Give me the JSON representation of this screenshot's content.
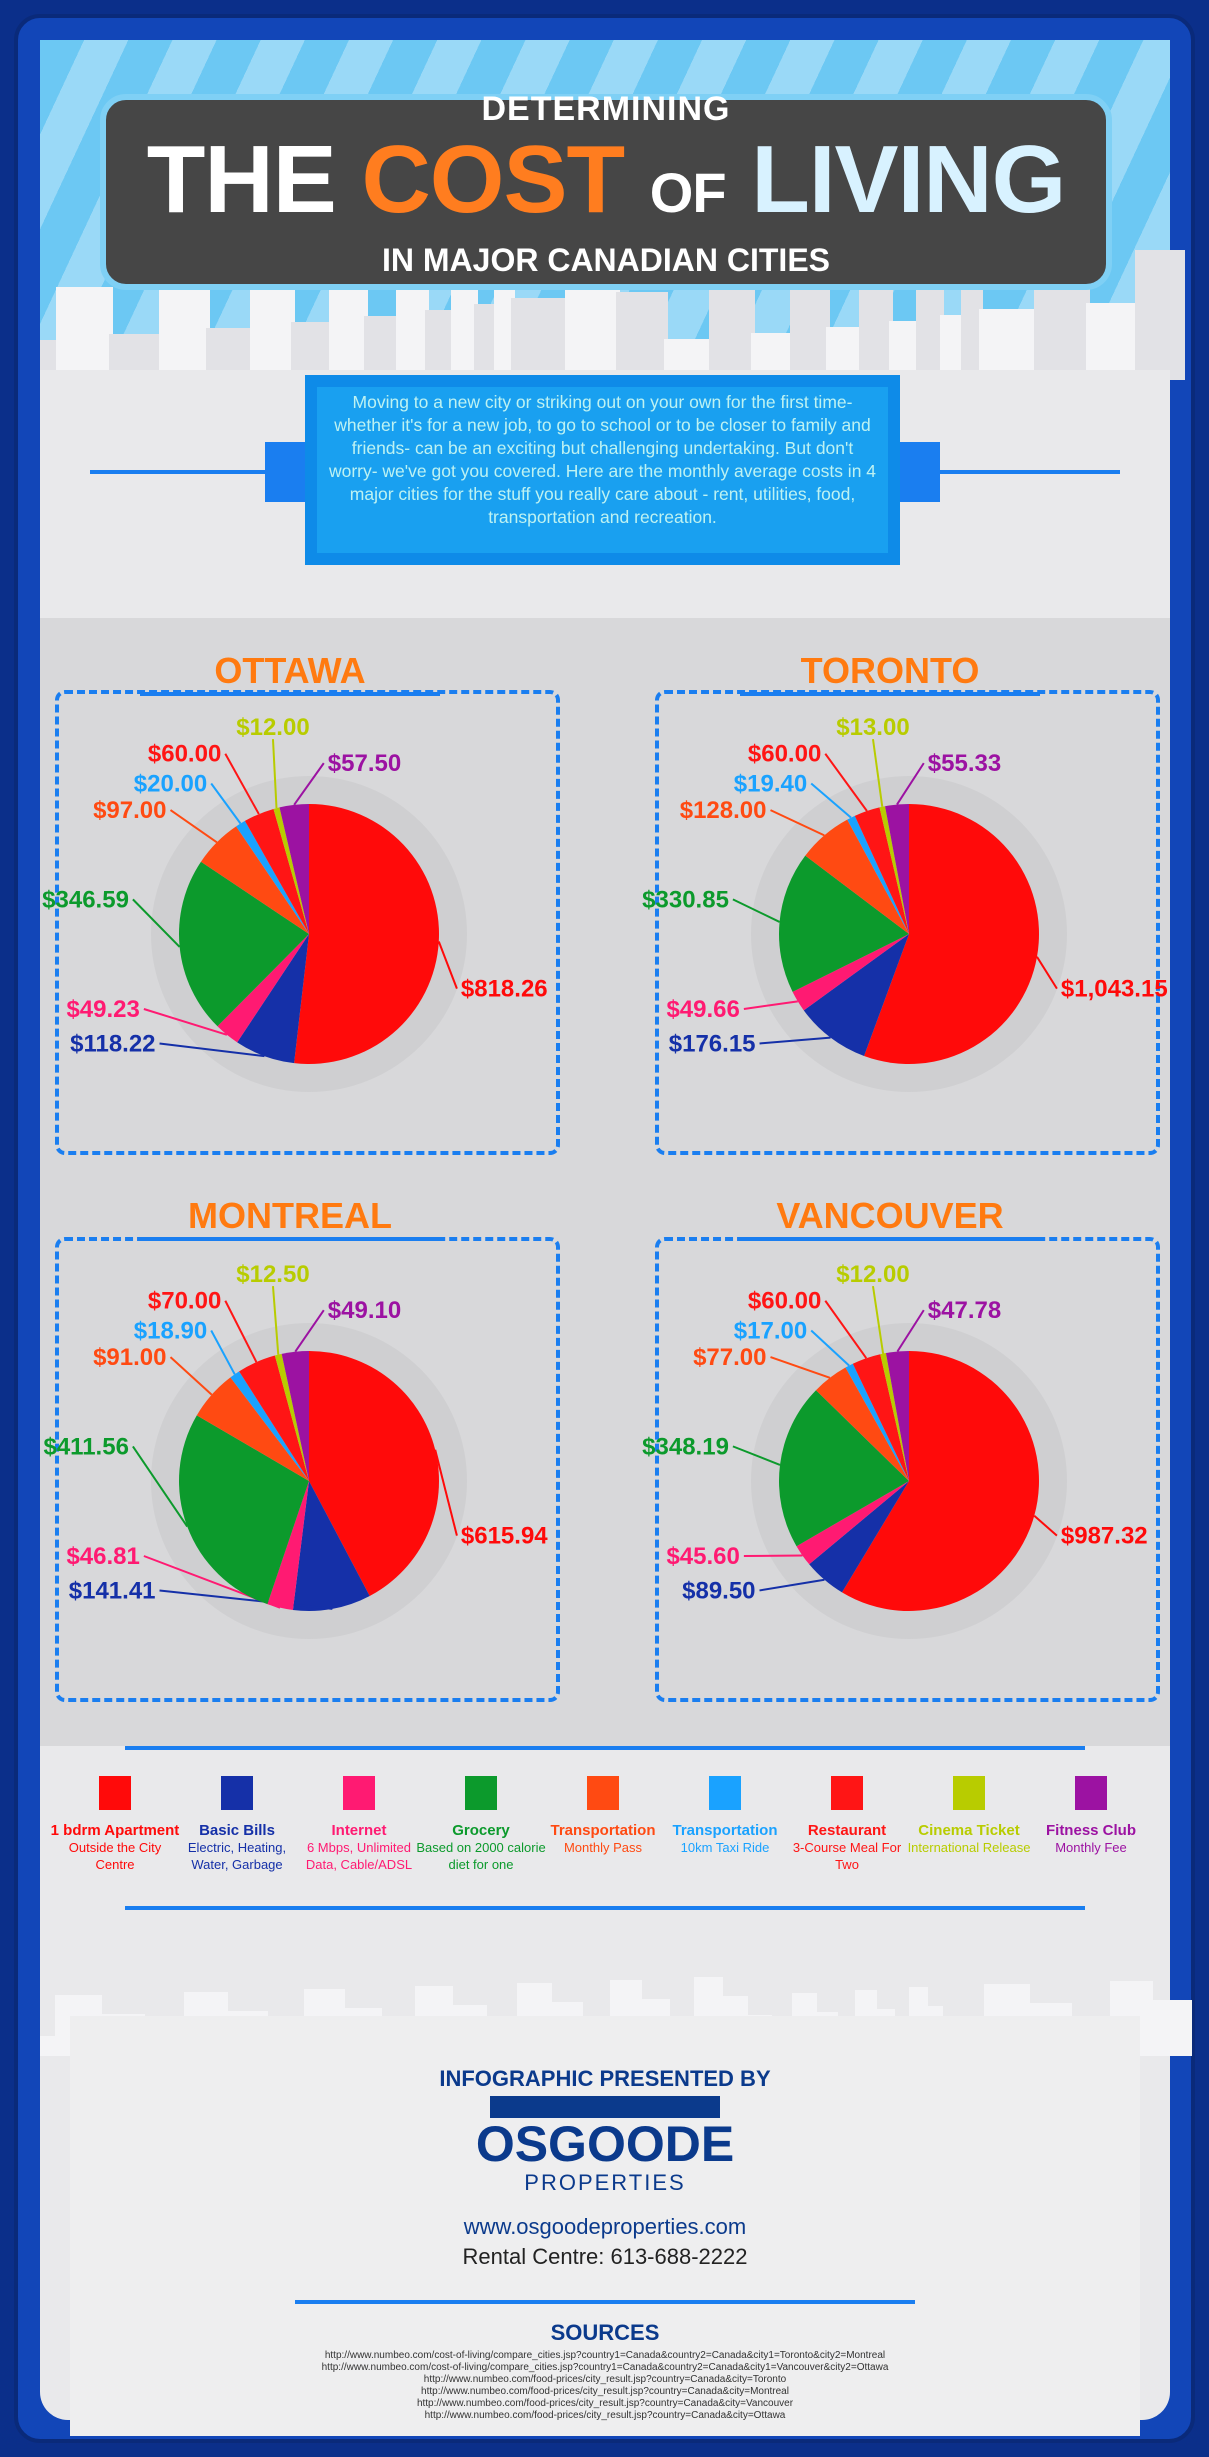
{
  "header": {
    "line1": "DETERMINING",
    "the": "THE",
    "cost": "COST",
    "of": "OF",
    "living": "LIVING",
    "subtitle": "IN MAJOR CANADIAN CITIES"
  },
  "intro": "Moving to a new city or striking out on your own for the first time- whether it's for a new job, to go to school or to be closer to family and friends- can be an exciting but challenging undertaking. But don't worry- we've got you covered. Here are the monthly average costs in 4 major cities for the stuff you really care about - rent, utilities, food, transportation and recreation.",
  "colors": [
    "#ff0a0a",
    "#1530a8",
    "#ff1a72",
    "#0c9a2c",
    "#ff4a12",
    "#1aa2ff",
    "#ff1515",
    "#b8cc00",
    "#9c12a2"
  ],
  "legend": [
    {
      "name": "1 bdrm Apartment",
      "desc": "Outside the City Centre"
    },
    {
      "name": "Basic Bills",
      "desc": "Electric, Heating, Water, Garbage"
    },
    {
      "name": "Internet",
      "desc": "6 Mbps, Unlimited Data, Cable/ADSL"
    },
    {
      "name": "Grocery",
      "desc": "Based on 2000 calorie diet for one"
    },
    {
      "name": "Transportation",
      "desc": "Monthly Pass"
    },
    {
      "name": "Transportation",
      "desc": "10km Taxi Ride"
    },
    {
      "name": "Restaurant",
      "desc": "3-Course Meal For Two"
    },
    {
      "name": "Cinema Ticket",
      "desc": "International Release"
    },
    {
      "name": "Fitness Club",
      "desc": "Monthly Fee"
    }
  ],
  "chart_data": [
    {
      "type": "pie",
      "title": "OTTAWA",
      "labels": [
        "$818.26",
        "$118.22",
        "$49.23",
        "$346.59",
        "$97.00",
        "$20.00",
        "$60.00",
        "$12.00",
        "$57.50"
      ],
      "values": [
        818.26,
        118.22,
        49.23,
        346.59,
        97.0,
        20.0,
        60.0,
        12.0,
        57.5
      ]
    },
    {
      "type": "pie",
      "title": "TORONTO",
      "labels": [
        "$1,043.15",
        "$176.15",
        "$49.66",
        "$330.85",
        "$128.00",
        "$19.40",
        "$60.00",
        "$13.00",
        "$55.33"
      ],
      "values": [
        1043.15,
        176.15,
        49.66,
        330.85,
        128.0,
        19.4,
        60.0,
        13.0,
        55.33
      ]
    },
    {
      "type": "pie",
      "title": "MONTREAL",
      "labels": [
        "$615.94",
        "$141.41",
        "$46.81",
        "$411.56",
        "$91.00",
        "$18.90",
        "$70.00",
        "$12.50",
        "$49.10"
      ],
      "values": [
        615.94,
        141.41,
        46.81,
        411.56,
        91.0,
        18.9,
        70.0,
        12.5,
        49.1
      ]
    },
    {
      "type": "pie",
      "title": "VANCOUVER",
      "labels": [
        "$987.32",
        "$89.50",
        "$45.60",
        "$348.19",
        "$77.00",
        "$17.00",
        "$60.00",
        "$12.00",
        "$47.78"
      ],
      "values": [
        987.32,
        89.5,
        45.6,
        348.19,
        77.0,
        17.0,
        60.0,
        12.0,
        47.78
      ]
    }
  ],
  "footer": {
    "presented": "INFOGRAPHIC PRESENTED BY",
    "logo_name": "OSGOODE",
    "logo_sub": "PROPERTIES",
    "url": "www.osgoodeproperties.com",
    "rental": "Rental Centre: 613-688-2222",
    "sources_title": "SOURCES",
    "sources": [
      "http://www.numbeo.com/cost-of-living/compare_cities.jsp?country1=Canada&country2=Canada&city1=Toronto&city2=Montreal",
      "http://www.numbeo.com/cost-of-living/compare_cities.jsp?country1=Canada&country2=Canada&city1=Vancouver&city2=Ottawa",
      "http://www.numbeo.com/food-prices/city_result.jsp?country=Canada&city=Toronto",
      "http://www.numbeo.com/food-prices/city_result.jsp?country=Canada&city=Montreal",
      "http://www.numbeo.com/food-prices/city_result.jsp?country=Canada&city=Vancouver",
      "http://www.numbeo.com/food-prices/city_result.jsp?country=Canada&city=Ottawa"
    ]
  }
}
